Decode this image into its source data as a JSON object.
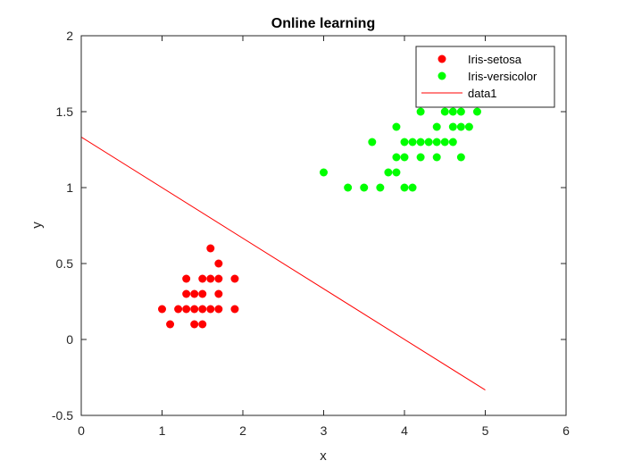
{
  "chart_data": {
    "type": "scatter",
    "title": "Online learning",
    "xlabel": "x",
    "ylabel": "y",
    "xlim": [
      0,
      6
    ],
    "ylim": [
      -0.5,
      2
    ],
    "xticks": [
      "0",
      "1",
      "2",
      "3",
      "4",
      "5",
      "6"
    ],
    "yticks": [
      "-0.5",
      "0",
      "0.5",
      "1",
      "1.5",
      "2"
    ],
    "grid": false,
    "legend_position": "top-right",
    "series": [
      {
        "name": "Iris-setosa",
        "kind": "scatter",
        "color": "#ff0000",
        "points": [
          [
            1.0,
            0.2
          ],
          [
            1.1,
            0.1
          ],
          [
            1.2,
            0.2
          ],
          [
            1.3,
            0.2
          ],
          [
            1.3,
            0.3
          ],
          [
            1.3,
            0.4
          ],
          [
            1.4,
            0.1
          ],
          [
            1.4,
            0.2
          ],
          [
            1.4,
            0.3
          ],
          [
            1.5,
            0.1
          ],
          [
            1.5,
            0.2
          ],
          [
            1.5,
            0.3
          ],
          [
            1.5,
            0.4
          ],
          [
            1.6,
            0.2
          ],
          [
            1.6,
            0.4
          ],
          [
            1.6,
            0.6
          ],
          [
            1.7,
            0.2
          ],
          [
            1.7,
            0.3
          ],
          [
            1.7,
            0.4
          ],
          [
            1.7,
            0.5
          ],
          [
            1.9,
            0.2
          ],
          [
            1.9,
            0.4
          ]
        ]
      },
      {
        "name": "Iris-versicolor",
        "kind": "scatter",
        "color": "#00ff00",
        "points": [
          [
            3.0,
            1.1
          ],
          [
            3.3,
            1.0
          ],
          [
            3.5,
            1.0
          ],
          [
            3.6,
            1.3
          ],
          [
            3.7,
            1.0
          ],
          [
            3.8,
            1.1
          ],
          [
            3.9,
            1.1
          ],
          [
            3.9,
            1.2
          ],
          [
            3.9,
            1.4
          ],
          [
            4.0,
            1.0
          ],
          [
            4.0,
            1.2
          ],
          [
            4.0,
            1.3
          ],
          [
            4.1,
            1.0
          ],
          [
            4.1,
            1.3
          ],
          [
            4.2,
            1.2
          ],
          [
            4.2,
            1.3
          ],
          [
            4.2,
            1.5
          ],
          [
            4.3,
            1.3
          ],
          [
            4.4,
            1.2
          ],
          [
            4.4,
            1.3
          ],
          [
            4.4,
            1.4
          ],
          [
            4.5,
            1.3
          ],
          [
            4.5,
            1.5
          ],
          [
            4.6,
            1.3
          ],
          [
            4.6,
            1.4
          ],
          [
            4.6,
            1.5
          ],
          [
            4.7,
            1.2
          ],
          [
            4.7,
            1.4
          ],
          [
            4.7,
            1.5
          ],
          [
            4.8,
            1.4
          ],
          [
            4.9,
            1.5
          ]
        ]
      },
      {
        "name": "data1",
        "kind": "line",
        "color": "#ff0000",
        "points": [
          [
            0,
            1.333
          ],
          [
            5,
            -0.333
          ]
        ]
      }
    ]
  }
}
